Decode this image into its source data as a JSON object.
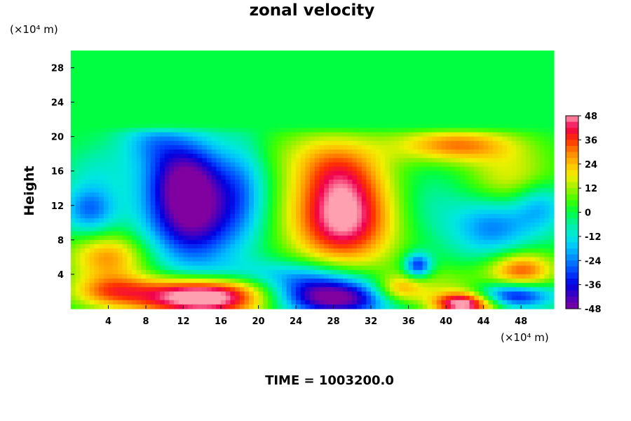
{
  "chart_data": {
    "type": "heatmap",
    "title": "zonal velocity",
    "ylabel": "Height",
    "xunit": "(×10⁴ m)",
    "yunit": "(×10⁴ m)",
    "xlim": [
      0,
      51.5
    ],
    "ylim": [
      0,
      30
    ],
    "x_ticks": [
      4,
      8,
      12,
      16,
      20,
      24,
      28,
      32,
      36,
      40,
      44,
      48
    ],
    "y_ticks": [
      4,
      8,
      12,
      16,
      20,
      24,
      28
    ],
    "colorbar": {
      "range": [
        -48,
        48
      ],
      "ticks": [
        48,
        36,
        24,
        12,
        0,
        -12,
        -24,
        -36,
        -48
      ],
      "stops": [
        {
          "v": -48,
          "color": "#8000a0"
        },
        {
          "v": -42,
          "color": "#4400c0"
        },
        {
          "v": -36,
          "color": "#0000e0"
        },
        {
          "v": -30,
          "color": "#0040ff"
        },
        {
          "v": -24,
          "color": "#0080ff"
        },
        {
          "v": -18,
          "color": "#00c0ff"
        },
        {
          "v": -12,
          "color": "#00e8e0"
        },
        {
          "v": -6,
          "color": "#00f0a0"
        },
        {
          "v": 0,
          "color": "#00ff40"
        },
        {
          "v": 6,
          "color": "#40ff00"
        },
        {
          "v": 12,
          "color": "#a0f000"
        },
        {
          "v": 18,
          "color": "#f0f000"
        },
        {
          "v": 24,
          "color": "#ffc000"
        },
        {
          "v": 30,
          "color": "#ff8000"
        },
        {
          "v": 36,
          "color": "#ff3000"
        },
        {
          "v": 42,
          "color": "#f00050"
        },
        {
          "v": 48,
          "color": "#ffa0b0"
        }
      ]
    },
    "background_value": 0,
    "features": [
      {
        "x": 13,
        "y": 11,
        "sx": 3.6,
        "sy": 4.2,
        "amp": -48
      },
      {
        "x": 12,
        "y": 16,
        "sx": 3.0,
        "sy": 3.0,
        "amp": -26
      },
      {
        "x": 8.5,
        "y": 19.5,
        "sx": 2.5,
        "sy": 1.8,
        "amp": -14
      },
      {
        "x": 18.5,
        "y": 14,
        "sx": 1.8,
        "sy": 4.0,
        "amp": -14
      },
      {
        "x": 29,
        "y": 10.5,
        "sx": 4.0,
        "sy": 4.0,
        "amp": 50
      },
      {
        "x": 28.5,
        "y": 16,
        "sx": 3.5,
        "sy": 2.5,
        "amp": 18
      },
      {
        "x": 26,
        "y": 18.5,
        "sx": 4.5,
        "sy": 2.0,
        "amp": 8
      },
      {
        "x": 41,
        "y": 19,
        "sx": 4.5,
        "sy": 1.4,
        "amp": 30
      },
      {
        "x": 47,
        "y": 15,
        "sx": 3.5,
        "sy": 2.5,
        "amp": 18
      },
      {
        "x": 50,
        "y": 12,
        "sx": 2.0,
        "sy": 2.0,
        "amp": -20
      },
      {
        "x": 45,
        "y": 9.5,
        "sx": 3.0,
        "sy": 2.5,
        "amp": -24
      },
      {
        "x": 38,
        "y": 12,
        "sx": 3.0,
        "sy": 3.0,
        "amp": -8
      },
      {
        "x": 48,
        "y": 4.5,
        "sx": 2.5,
        "sy": 1.5,
        "amp": 34
      },
      {
        "x": 37,
        "y": 5,
        "sx": 1.0,
        "sy": 1.0,
        "amp": -36
      },
      {
        "x": 4,
        "y": 6,
        "sx": 3.0,
        "sy": 2.0,
        "amp": 28
      },
      {
        "x": 2,
        "y": 11.5,
        "sx": 2.0,
        "sy": 2.0,
        "amp": -26
      },
      {
        "x": 3,
        "y": 16,
        "sx": 2.5,
        "sy": 2.0,
        "amp": -8
      },
      {
        "x": 4,
        "y": 2,
        "sx": 3.0,
        "sy": 1.3,
        "amp": 22
      },
      {
        "x": 14,
        "y": 1.5,
        "sx": 5.5,
        "sy": 1.8,
        "amp": 60
      },
      {
        "x": 16,
        "y": 4,
        "sx": 5.0,
        "sy": 1.2,
        "amp": -14
      },
      {
        "x": 28,
        "y": 1.2,
        "sx": 4.5,
        "sy": 1.5,
        "amp": -52
      },
      {
        "x": 25,
        "y": 3.5,
        "sx": 4.0,
        "sy": 1.5,
        "amp": -22
      },
      {
        "x": 35,
        "y": 2.2,
        "sx": 2.0,
        "sy": 1.2,
        "amp": 30
      },
      {
        "x": 42,
        "y": 0.6,
        "sx": 2.5,
        "sy": 1.0,
        "amp": 55
      },
      {
        "x": 47,
        "y": 1.5,
        "sx": 3.0,
        "sy": 1.0,
        "amp": -40
      },
      {
        "x": 40,
        "y": 3,
        "sx": 3.0,
        "sy": 1.5,
        "amp": 10
      }
    ]
  },
  "time_label": "TIME = 1003200.0"
}
